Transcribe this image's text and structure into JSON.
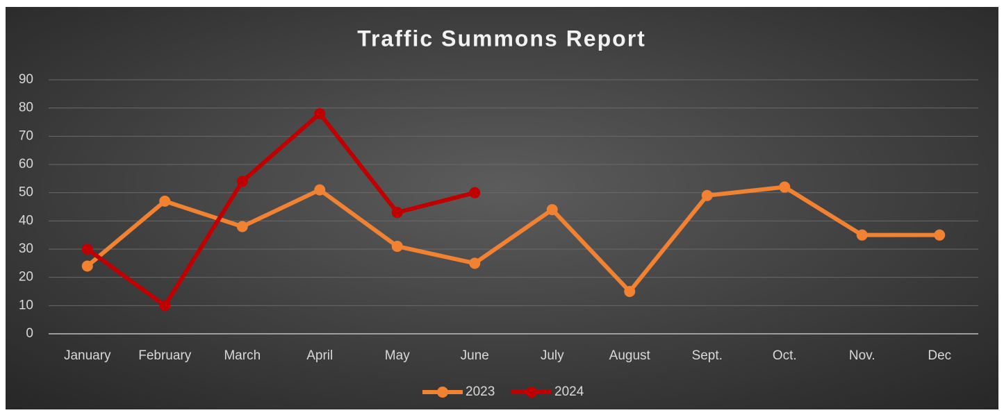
{
  "chart_data": {
    "type": "line",
    "title": "Traffic Summons Report",
    "categories": [
      "January",
      "February",
      "March",
      "April",
      "May",
      "June",
      "July",
      "August",
      "Sept.",
      "Oct.",
      "Nov.",
      "Dec"
    ],
    "series": [
      {
        "name": "2023",
        "color": "#f08232",
        "values": [
          24,
          47,
          38,
          51,
          31,
          25,
          44,
          15,
          49,
          52,
          35,
          35
        ]
      },
      {
        "name": "2024",
        "color": "#c00000",
        "values": [
          30,
          10,
          54,
          78,
          43,
          50,
          null,
          null,
          null,
          null,
          null,
          null
        ]
      }
    ],
    "ylim": [
      0,
      90
    ],
    "yticks": [
      0,
      10,
      20,
      30,
      40,
      50,
      60,
      70,
      80,
      90
    ],
    "grid": true,
    "legend": "bottom"
  }
}
